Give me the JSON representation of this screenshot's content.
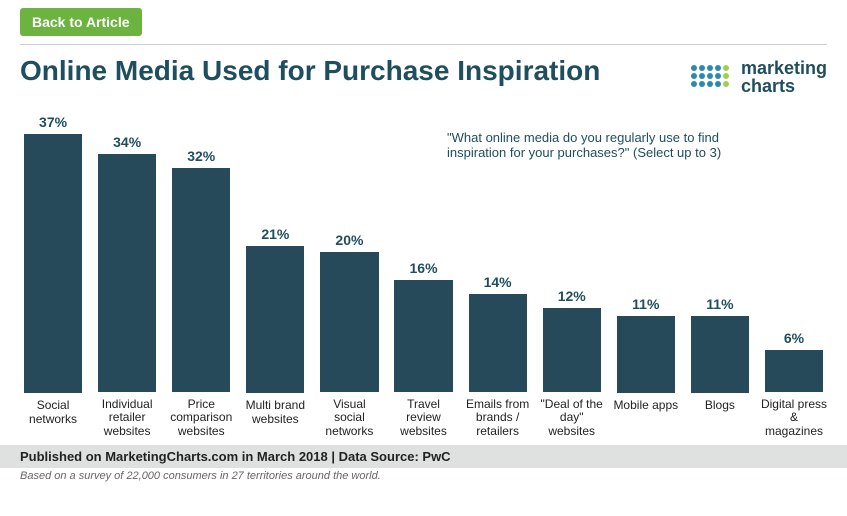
{
  "nav": {
    "back_label": "Back to Article"
  },
  "title": "Online Media Used for Purchase Inspiration",
  "logo": {
    "text_line1": "marketing",
    "text_line2": "charts",
    "dot_colors": [
      "#2b8ab3",
      "#2b8ab3",
      "#2b8ab3",
      "#2b8ab3",
      "#a0cf4c",
      "#2b8ab3",
      "#2b8ab3",
      "#2b8ab3",
      "#2b8ab3",
      "#a0cf4c",
      "#2b8ab3",
      "#2b8ab3",
      "#2b8ab3",
      "#2b8ab3",
      "#a0cf4c"
    ],
    "dot_radius": 3,
    "dot_gap": 8
  },
  "quote": "\"What online media do you regularly use to find inspiration for your purchases?\" (Select up to 3)",
  "chart": {
    "type": "bar",
    "y_max_pct": 40,
    "bar_color": "#264a5a",
    "label_color": "#1f4e5f",
    "background_color": "#ffffff",
    "label_fontsize": 14,
    "category_fontsize": 12,
    "bars": [
      {
        "category": "Social\nnetworks",
        "value_pct": 37,
        "label": "37%"
      },
      {
        "category": "Individual\nretailer\nwebsites",
        "value_pct": 34,
        "label": "34%"
      },
      {
        "category": "Price\ncomparison\nwebsites",
        "value_pct": 32,
        "label": "32%"
      },
      {
        "category": "Multi brand\nwebsites",
        "value_pct": 21,
        "label": "21%"
      },
      {
        "category": "Visual social\nnetworks",
        "value_pct": 20,
        "label": "20%"
      },
      {
        "category": "Travel\nreview\nwebsites",
        "value_pct": 16,
        "label": "16%"
      },
      {
        "category": "Emails from\nbrands /\nretailers",
        "value_pct": 14,
        "label": "14%"
      },
      {
        "category": "\"Deal of the\nday\"\nwebsites",
        "value_pct": 12,
        "label": "12%"
      },
      {
        "category": "Mobile apps",
        "value_pct": 11,
        "label": "11%"
      },
      {
        "category": "Blogs",
        "value_pct": 11,
        "label": "11%"
      },
      {
        "category": "Digital press\n& magazines",
        "value_pct": 6,
        "label": "6%"
      }
    ]
  },
  "footer": {
    "published_line": "Published on MarketingCharts.com in March 2018 | Data Source: PwC",
    "basis_line": "Based on a survey of 22,000 consumers in 27 territories around the world."
  }
}
